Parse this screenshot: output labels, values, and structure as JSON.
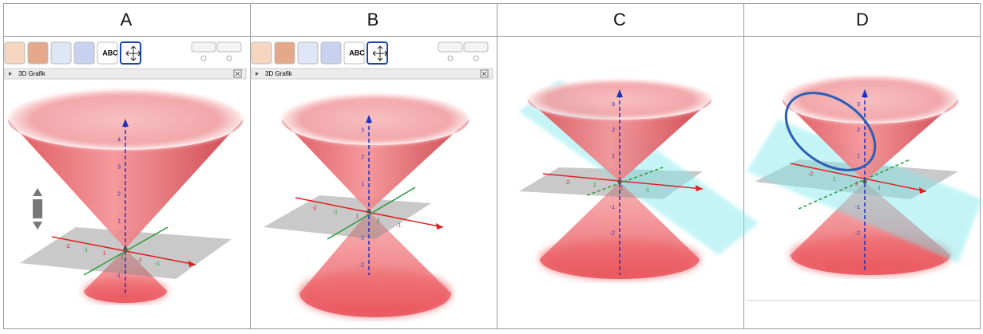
{
  "columns": [
    {
      "header": "A",
      "toolbar": {
        "view": "3D Grafik",
        "text_tool": "ABC"
      },
      "axis_labels": [
        "4",
        "3",
        "2",
        "1",
        "-1",
        "-2",
        "-1",
        "1",
        "2",
        "-2",
        "-1"
      ]
    },
    {
      "header": "B",
      "toolbar": {
        "view": "3D Grafik",
        "text_tool": "ABC"
      },
      "axis_labels": [
        "3",
        "2",
        "1",
        "-1",
        "-2",
        "-2",
        "-1",
        "1",
        "2",
        "-1"
      ]
    },
    {
      "header": "C",
      "axis_labels": [
        "3",
        "2",
        "1",
        "-1",
        "-2",
        "-2",
        "1",
        "2",
        "-1"
      ]
    },
    {
      "header": "D",
      "axis_labels": [
        "3",
        "2",
        "1",
        "-1",
        "-2",
        "-2",
        "1",
        "2",
        "-1"
      ]
    }
  ]
}
